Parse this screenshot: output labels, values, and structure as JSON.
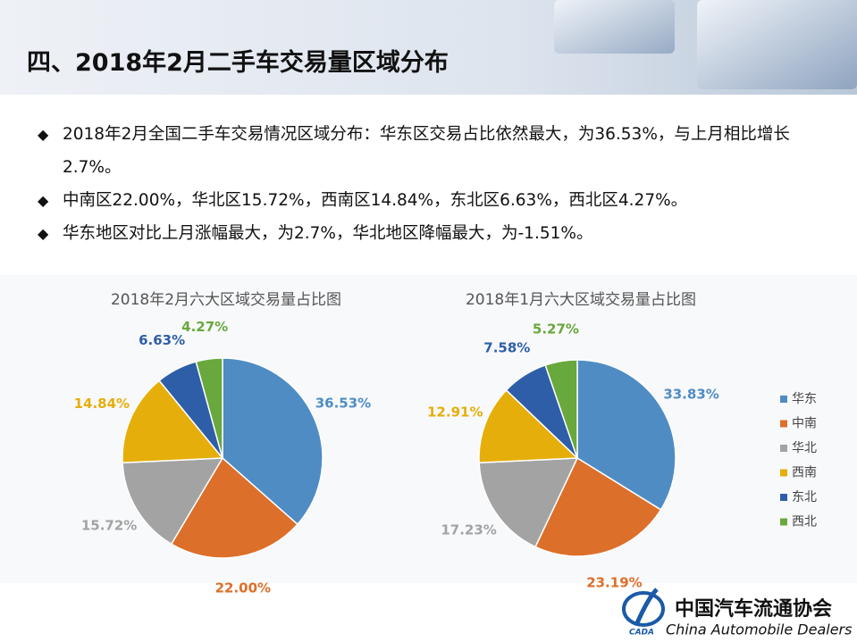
{
  "header": {
    "title": "四、2018年2月二手车交易量区域分布"
  },
  "bullets": [
    "2018年2月全国二手车交易情况区域分布：华东区交易占比依然最大，为36.53%，与上月相比增长2.7%。",
    "中南区22.00%，华北区15.72%，西南区14.84%，东北区6.63%，西北区4.27%。",
    "华东地区对比上月涨幅最大，为2.7%，华北地区降幅最大，为-1.51%。"
  ],
  "chart_data": [
    {
      "type": "pie",
      "title": "2018年2月六大区域交易量占比图",
      "categories": [
        "华东",
        "中南",
        "华北",
        "西南",
        "东北",
        "西北"
      ],
      "values": [
        36.53,
        22.0,
        15.72,
        14.84,
        6.63,
        4.27
      ],
      "value_labels": [
        "36.53%",
        "22.00%",
        "15.72%",
        "14.84%",
        "6.63%",
        "4.27%"
      ],
      "colors": [
        "#4f8cc4",
        "#dc6f2a",
        "#a3a3a3",
        "#e6ae0a",
        "#2f5ea8",
        "#68a83c"
      ]
    },
    {
      "type": "pie",
      "title": "2018年1月六大区域交易量占比图",
      "categories": [
        "华东",
        "中南",
        "华北",
        "西南",
        "东北",
        "西北"
      ],
      "values": [
        33.83,
        23.19,
        17.23,
        12.91,
        7.58,
        5.27
      ],
      "value_labels": [
        "33.83%",
        "23.19%",
        "17.23%",
        "12.91%",
        "7.58%",
        "5.27%"
      ],
      "colors": [
        "#4f8cc4",
        "#dc6f2a",
        "#a3a3a3",
        "#e6ae0a",
        "#2f5ea8",
        "#68a83c"
      ],
      "legend": "right"
    }
  ],
  "footer": {
    "org": "中国汽车流通协会",
    "org_en": "China  Automobile Dealers",
    "logo_text": "CADA"
  }
}
